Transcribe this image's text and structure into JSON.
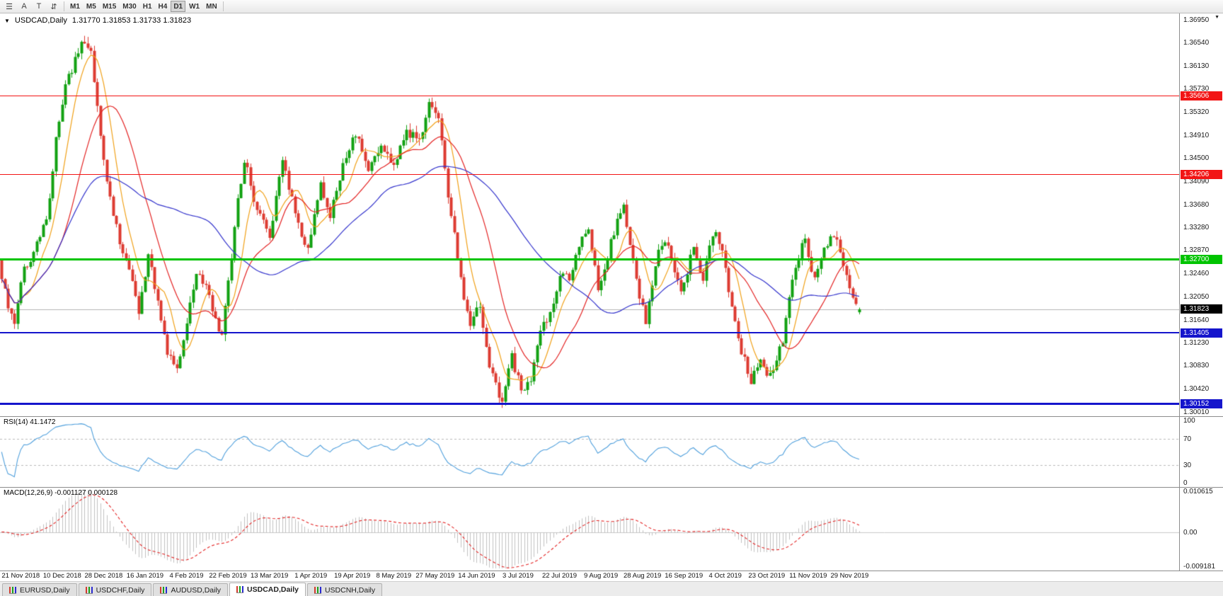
{
  "icons": {
    "axis_menu": "▼"
  },
  "toolbar": {
    "tools": [
      {
        "name": "menu",
        "glyph": "☰"
      },
      {
        "name": "pointer",
        "glyph": "A"
      },
      {
        "name": "text",
        "glyph": "T"
      },
      {
        "name": "arrows",
        "glyph": "⇵"
      }
    ],
    "timeframes": [
      "M1",
      "M5",
      "M15",
      "M30",
      "H1",
      "H4",
      "D1",
      "W1",
      "MN"
    ],
    "active_timeframe": "D1"
  },
  "chart": {
    "collapse_icon": "▼",
    "symbol_label": "USDCAD,Daily",
    "ohlc_label": "1.31770 1.31853 1.31733 1.31823"
  },
  "rsi_panel": {
    "label": "RSI(14) 41.1472",
    "axis_labels": [
      "100",
      "70",
      "30",
      "0"
    ]
  },
  "macd_panel": {
    "label": "MACD(12,26,9) -0.001127 0.000128",
    "axis_labels": [
      "0.010615",
      "0.00",
      "-0.009181"
    ]
  },
  "tabs": [
    {
      "label": "EURUSD,Daily",
      "active": false
    },
    {
      "label": "USDCHF,Daily",
      "active": false
    },
    {
      "label": "AUDUSD,Daily",
      "active": false
    },
    {
      "label": "USDCAD,Daily",
      "active": true
    },
    {
      "label": "USDCNH,Daily",
      "active": false
    }
  ],
  "chart_data": {
    "type": "candlestick",
    "symbol": "USDCAD",
    "timeframe": "Daily",
    "open": 1.3177,
    "high": 1.31853,
    "low": 1.31733,
    "close": 1.31823,
    "close_label": "1.31823",
    "price_axis": {
      "min": 1.2993,
      "max": 1.3706,
      "labels": [
        "1.36950",
        "1.36540",
        "1.36130",
        "1.35730",
        "1.35320",
        "1.34910",
        "1.34500",
        "1.34090",
        "1.33680",
        "1.33280",
        "1.32870",
        "1.32460",
        "1.32050",
        "1.31640",
        "1.31230",
        "1.30830",
        "1.30420",
        "1.30010"
      ]
    },
    "levels": [
      {
        "value": 1.35606,
        "label": "1.35606",
        "color": "#f21515",
        "width": 1
      },
      {
        "value": 1.34206,
        "label": "1.34206",
        "color": "#f21515",
        "width": 1
      },
      {
        "value": 1.327,
        "label": "1.32700",
        "color": "#00c400",
        "width": 3
      },
      {
        "value": 1.31405,
        "label": "1.31405",
        "color": "#1515cc",
        "width": 2
      },
      {
        "value": 1.30152,
        "label": "1.30152",
        "color": "#1515cc",
        "width": 3
      }
    ],
    "candles": {
      "count": 270,
      "seed": 12,
      "body_noise": 0.002,
      "wick_noise": 0.0012,
      "right_margin_fraction": 0.27,
      "anchors": [
        [
          0,
          1.327
        ],
        [
          3,
          1.318
        ],
        [
          5,
          1.316
        ],
        [
          8,
          1.325
        ],
        [
          12,
          1.33
        ],
        [
          15,
          1.334
        ],
        [
          18,
          1.348
        ],
        [
          21,
          1.359
        ],
        [
          24,
          1.362
        ],
        [
          27,
          1.366
        ],
        [
          29,
          1.364
        ],
        [
          32,
          1.348
        ],
        [
          35,
          1.338
        ],
        [
          38,
          1.33
        ],
        [
          41,
          1.326
        ],
        [
          44,
          1.318
        ],
        [
          47,
          1.328
        ],
        [
          50,
          1.32
        ],
        [
          53,
          1.311
        ],
        [
          56,
          1.307
        ],
        [
          59,
          1.316
        ],
        [
          62,
          1.325
        ],
        [
          65,
          1.322
        ],
        [
          67,
          1.318
        ],
        [
          70,
          1.313
        ],
        [
          74,
          1.333
        ],
        [
          77,
          1.345
        ],
        [
          81,
          1.336
        ],
        [
          85,
          1.331
        ],
        [
          89,
          1.344
        ],
        [
          93,
          1.335
        ],
        [
          97,
          1.329
        ],
        [
          101,
          1.34
        ],
        [
          104,
          1.335
        ],
        [
          108,
          1.344
        ],
        [
          112,
          1.349
        ],
        [
          116,
          1.343
        ],
        [
          120,
          1.347
        ],
        [
          124,
          1.344
        ],
        [
          128,
          1.35
        ],
        [
          132,
          1.348
        ],
        [
          135,
          1.3555
        ],
        [
          138,
          1.352
        ],
        [
          141,
          1.339
        ],
        [
          145,
          1.323
        ],
        [
          148,
          1.315
        ],
        [
          151,
          1.319
        ],
        [
          154,
          1.308
        ],
        [
          158,
          1.302
        ],
        [
          161,
          1.31
        ],
        [
          164,
          1.304
        ],
        [
          167,
          1.306
        ],
        [
          170,
          1.314
        ],
        [
          173,
          1.317
        ],
        [
          176,
          1.325
        ],
        [
          179,
          1.323
        ],
        [
          182,
          1.33
        ],
        [
          185,
          1.333
        ],
        [
          188,
          1.322
        ],
        [
          192,
          1.33
        ],
        [
          196,
          1.337
        ],
        [
          200,
          1.323
        ],
        [
          203,
          1.316
        ],
        [
          207,
          1.328
        ],
        [
          210,
          1.33
        ],
        [
          214,
          1.321
        ],
        [
          218,
          1.329
        ],
        [
          221,
          1.324
        ],
        [
          224,
          1.332
        ],
        [
          227,
          1.329
        ],
        [
          230,
          1.318
        ],
        [
          233,
          1.311
        ],
        [
          236,
          1.3055
        ],
        [
          239,
          1.309
        ],
        [
          242,
          1.306
        ],
        [
          246,
          1.313
        ],
        [
          249,
          1.323
        ],
        [
          253,
          1.331
        ],
        [
          256,
          1.323
        ],
        [
          260,
          1.33
        ],
        [
          263,
          1.331
        ],
        [
          266,
          1.324
        ],
        [
          269,
          1.3182
        ]
      ]
    },
    "moving_averages": [
      {
        "period": 8,
        "color": "#f0a017"
      },
      {
        "period": 20,
        "color": "#e32222"
      },
      {
        "period": 50,
        "color": "#3333cc"
      }
    ],
    "rsi": {
      "period": 14,
      "color": "#4f9fdc",
      "levels": [
        70,
        30
      ],
      "range": [
        0,
        100
      ],
      "current": 41.1472
    },
    "macd": {
      "fast": 12,
      "slow": 26,
      "signal": 9,
      "histogram_color": "#c0c0c0",
      "signal_color": "#e32222",
      "range": [
        -0.009181,
        0.010615
      ],
      "current_macd": -0.001127,
      "current_signal": 0.000128
    },
    "x_labels": {
      "first_index": 6,
      "every": 13,
      "labels": [
        "21 Nov 2018",
        "10 Dec 2018",
        "28 Dec 2018",
        "16 Jan 2019",
        "4 Feb 2019",
        "22 Feb 2019",
        "13 Mar 2019",
        "1 Apr 2019",
        "19 Apr 2019",
        "8 May 2019",
        "27 May 2019",
        "14 Jun 2019",
        "3 Jul 2019",
        "22 Jul 2019",
        "9 Aug 2019",
        "28 Aug 2019",
        "16 Sep 2019",
        "4 Oct 2019",
        "23 Oct 2019",
        "11 Nov 2019",
        "29 Nov 2019"
      ]
    },
    "colors": {
      "up": "#12a112",
      "down": "#dd3b31",
      "background": "#ffffff",
      "axis_text": "#111111",
      "current_price_line": "#b4b4b4",
      "current_badge_bg": "#000000",
      "rsi_level_line": "#b8b8b8",
      "zero_line": "#c8c8c8"
    }
  }
}
